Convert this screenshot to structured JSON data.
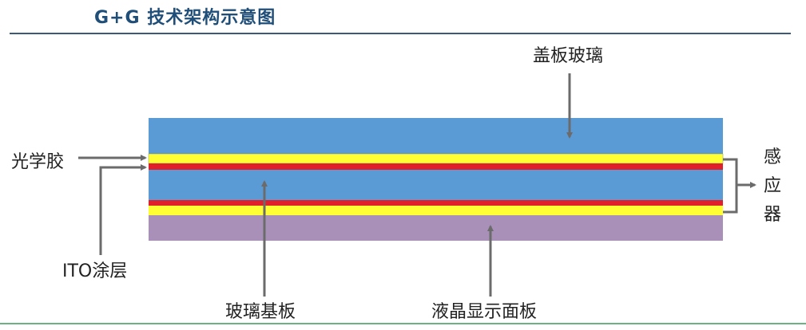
{
  "title": "G+G 技术架构示意图",
  "labels": {
    "cover_glass": "盖板玻璃",
    "optical_adhesive": "光学胶",
    "ito_coating": "ITO涂层",
    "glass_substrate": "玻璃基板",
    "lcd_panel": "液晶显示面板",
    "sensor": [
      "感",
      "应",
      "器"
    ]
  },
  "colors": {
    "glass": "#5b9bd5",
    "optical_adhesive": "#ffff33",
    "ito": "#e0202a",
    "lcd": "#a990b8",
    "arrow": "#6b6b6b",
    "header_line": "#3c5a78",
    "footer_line": "#3a9a5a"
  }
}
